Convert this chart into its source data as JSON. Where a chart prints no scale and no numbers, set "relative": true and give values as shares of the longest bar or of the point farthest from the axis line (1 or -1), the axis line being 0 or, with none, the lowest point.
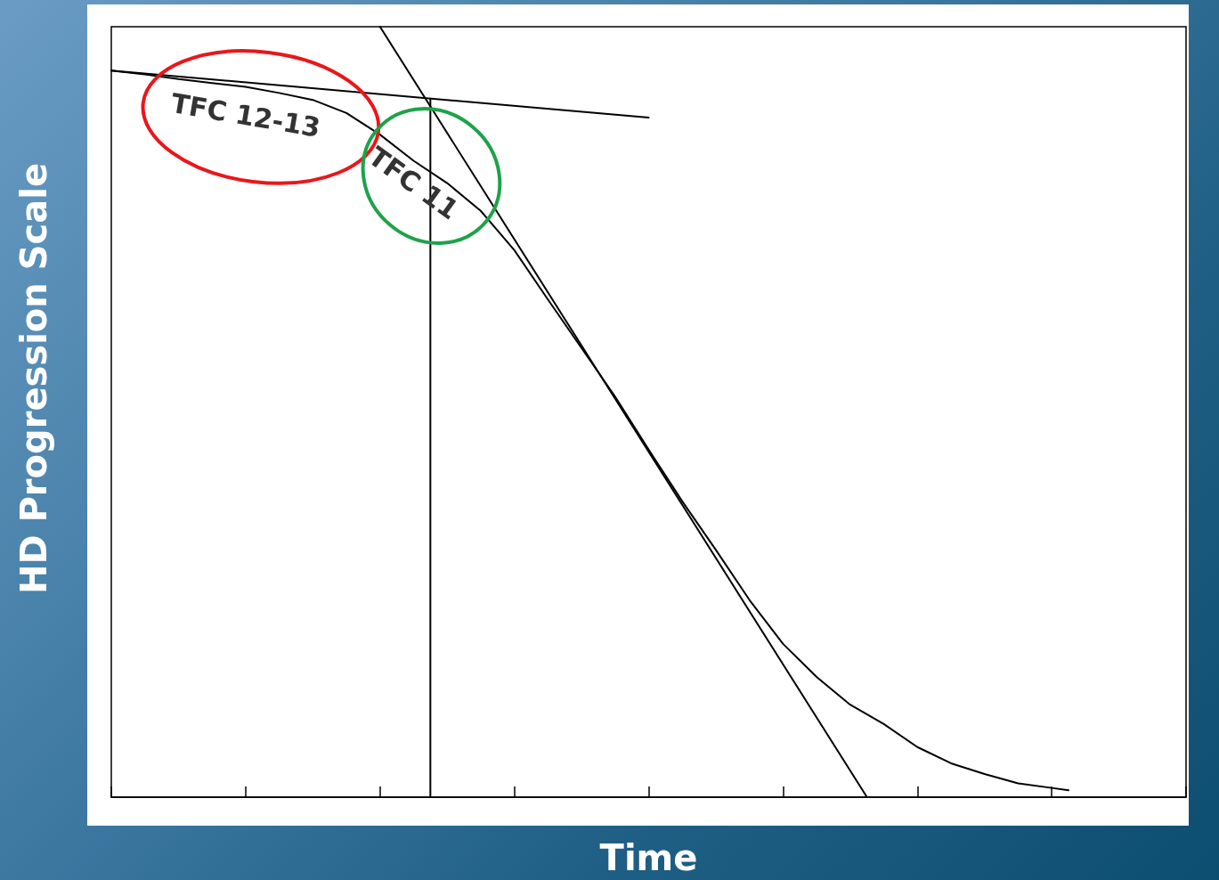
{
  "chart_data": {
    "type": "line",
    "relative": true,
    "xlabel": "Time",
    "ylabel": "HD Progression Scale",
    "line_style": "solid",
    "categories": [
      null,
      null,
      null,
      null,
      null,
      null,
      null,
      null,
      null,
      null,
      null,
      null,
      null,
      null,
      null,
      null,
      null,
      null,
      null,
      null,
      null,
      null,
      null,
      null,
      null,
      null,
      null,
      null,
      null,
      null,
      null,
      null,
      null,
      null,
      null,
      null,
      null,
      null,
      null,
      null,
      null,
      null,
      null,
      null,
      null,
      null,
      null,
      null,
      null,
      null,
      null,
      null,
      null,
      null,
      null,
      null,
      null,
      null,
      null,
      null,
      null,
      null,
      null,
      null,
      null
    ],
    "series": [
      {
        "color": "#000000",
        "values": [
          0.943,
          null,
          0.938,
          null,
          0.932,
          null,
          0.927,
          null,
          0.922,
          null,
          0.914,
          null,
          0.905,
          null,
          0.888,
          null,
          0.86,
          null,
          0.826,
          null,
          0.797,
          null,
          0.761,
          null,
          0.71,
          null,
          0.646,
          null,
          0.583,
          null,
          0.52,
          null,
          0.451,
          null,
          0.384,
          null,
          0.321,
          null,
          0.256,
          null,
          0.199,
          null,
          0.156,
          null,
          0.12,
          null,
          0.095,
          null,
          0.065,
          null,
          0.044,
          null,
          0.03,
          null,
          0.018,
          null,
          0.012,
          0.009,
          null,
          null,
          null,
          null,
          null,
          null,
          null
        ]
      },
      {
        "color": "#000000",
        "values": [
          0.943,
          null,
          null,
          null,
          null,
          null,
          null,
          null,
          null,
          null,
          null,
          null,
          null,
          null,
          null,
          null,
          null,
          null,
          null,
          null,
          null,
          null,
          null,
          null,
          null,
          null,
          null,
          null,
          null,
          null,
          null,
          null,
          0.882,
          null,
          null,
          null,
          null,
          null,
          null,
          null,
          null,
          null,
          null,
          null,
          null,
          null,
          null,
          null,
          null,
          null,
          null,
          null,
          null,
          null,
          null,
          null,
          null,
          null,
          null,
          null,
          null,
          null,
          null,
          null,
          null
        ]
      },
      {
        "color": "#000000",
        "values": [
          null,
          null,
          null,
          null,
          null,
          null,
          null,
          null,
          null,
          null,
          null,
          null,
          null,
          null,
          null,
          null,
          1.0,
          null,
          null,
          null,
          null,
          null,
          null,
          null,
          null,
          null,
          null,
          null,
          null,
          null,
          null,
          null,
          null,
          null,
          null,
          null,
          null,
          null,
          null,
          null,
          null,
          null,
          null,
          null,
          null,
          0,
          null,
          null,
          null,
          null,
          null,
          null,
          null,
          null,
          null,
          null,
          null,
          null,
          null,
          null,
          null,
          null,
          null,
          null,
          null
        ]
      }
    ],
    "annotations": [
      "TFC 12-13",
      "TFC 11"
    ]
  }
}
